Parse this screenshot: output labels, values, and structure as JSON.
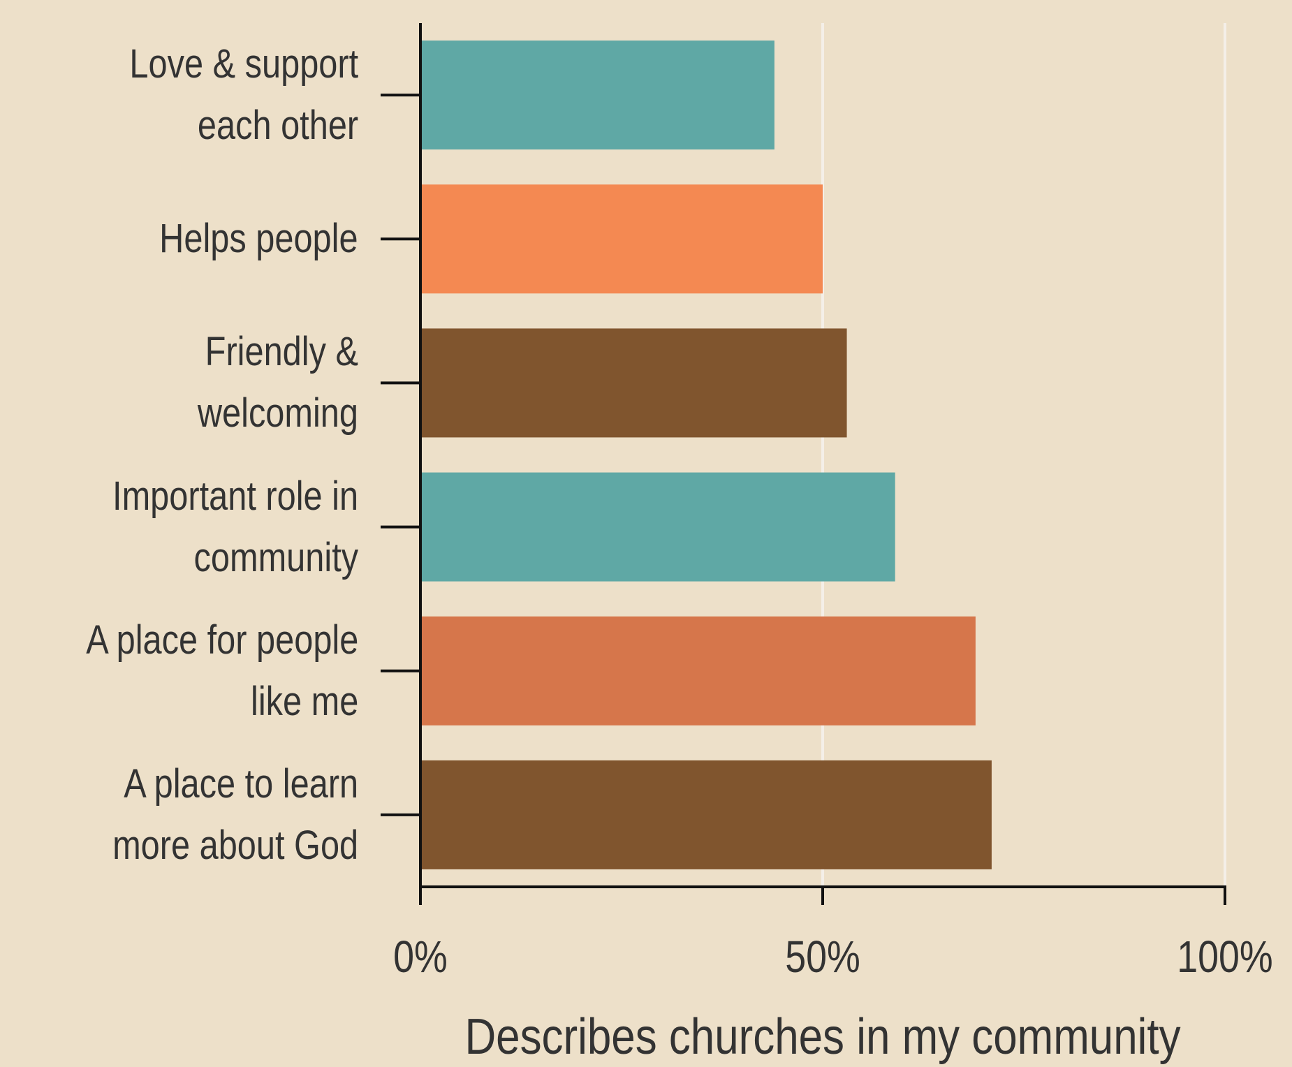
{
  "chart_data": {
    "type": "bar",
    "orientation": "horizontal",
    "categories": [
      "Love & support\neach other",
      "Helps people",
      "Friendly &\nwelcoming",
      "Important role in\ncommunity",
      "A place for people\nlike me",
      "A place to learn\nmore about God"
    ],
    "values": [
      44,
      50,
      53,
      59,
      69,
      71
    ],
    "colors": [
      "#5fa8a5",
      "#f48952",
      "#80552e",
      "#5fa8a5",
      "#d6764b",
      "#80552e"
    ],
    "xlabel": "Describes churches in my community",
    "xlim": [
      0,
      100
    ],
    "xticks": [
      {
        "value": 0,
        "label": "0%"
      },
      {
        "value": 50,
        "label": "50%"
      },
      {
        "value": 100,
        "label": "100%"
      }
    ],
    "grid": true
  }
}
